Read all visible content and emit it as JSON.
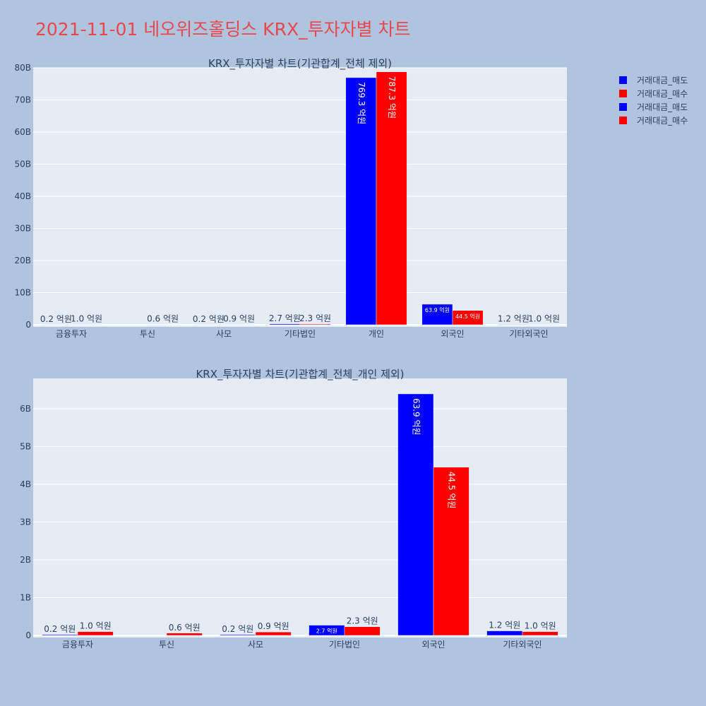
{
  "page": {
    "title": "2021-11-01 네오위즈홀딩스 KRX_투자자별 차트"
  },
  "colors": {
    "sell": "#0000ff",
    "buy": "#ff0000",
    "title": "#e8474f",
    "plot_bg": "#e5ecf6",
    "page_bg": "#b0c4de"
  },
  "legend": {
    "items": [
      {
        "label": "거래대금_매도",
        "color": "#0000ff"
      },
      {
        "label": "거래대금_매수",
        "color": "#ff0000"
      },
      {
        "label": "거래대금_매도",
        "color": "#0000ff"
      },
      {
        "label": "거래대금_매수",
        "color": "#ff0000"
      }
    ]
  },
  "chart_data": [
    {
      "type": "bar",
      "title": "KRX_투자자별 차트(기관합계_전체 제외)",
      "categories": [
        "금융투자",
        "투신",
        "사모",
        "기타법인",
        "개인",
        "외국인",
        "기타외국인"
      ],
      "ylim": [
        0,
        80
      ],
      "yunit": "B",
      "yticks": [
        "0",
        "10B",
        "20B",
        "30B",
        "40B",
        "50B",
        "60B",
        "70B",
        "80B"
      ],
      "grid": true,
      "legend_position": "top-right",
      "series": [
        {
          "name": "거래대금_매도",
          "color": "#0000ff",
          "values": [
            0.02,
            0,
            0.02,
            0.27,
            76.93,
            6.39,
            0.12
          ],
          "labels": [
            "0.2 억원",
            "",
            "0.2 억원",
            "2.7 억원",
            "769.3 억원",
            "63.9 억원",
            "1.2 억원"
          ]
        },
        {
          "name": "거래대금_매수",
          "color": "#ff0000",
          "values": [
            0.1,
            0.06,
            0.09,
            0.23,
            78.73,
            4.45,
            0.1
          ],
          "labels": [
            "1.0 억원",
            "0.6 억원",
            "0.9 억원",
            "2.3 억원",
            "787.3 억원",
            "44.5 억원",
            "1.0 억원"
          ]
        }
      ]
    },
    {
      "type": "bar",
      "title": "KRX_투자자별 차트(기관합계_전체_개인 제외)",
      "categories": [
        "금융투자",
        "투신",
        "사모",
        "기타법인",
        "외국인",
        "기타외국인"
      ],
      "ylim": [
        0,
        6.8
      ],
      "yunit": "B",
      "yticks": [
        "0",
        "1B",
        "2B",
        "3B",
        "4B",
        "5B",
        "6B"
      ],
      "grid": true,
      "legend_position": "top-right",
      "series": [
        {
          "name": "거래대금_매도",
          "color": "#0000ff",
          "values": [
            0.02,
            0,
            0.02,
            0.27,
            6.39,
            0.12
          ],
          "labels": [
            "0.2 억원",
            "",
            "0.2 억원",
            "2.7 억원",
            "63.9 억원",
            "1.2 억원"
          ]
        },
        {
          "name": "거래대금_매수",
          "color": "#ff0000",
          "values": [
            0.1,
            0.06,
            0.09,
            0.23,
            4.45,
            0.1
          ],
          "labels": [
            "1.0 억원",
            "0.6 억원",
            "0.9 억원",
            "2.3 억원",
            "44.5 억원",
            "1.0 억원"
          ]
        }
      ]
    }
  ]
}
